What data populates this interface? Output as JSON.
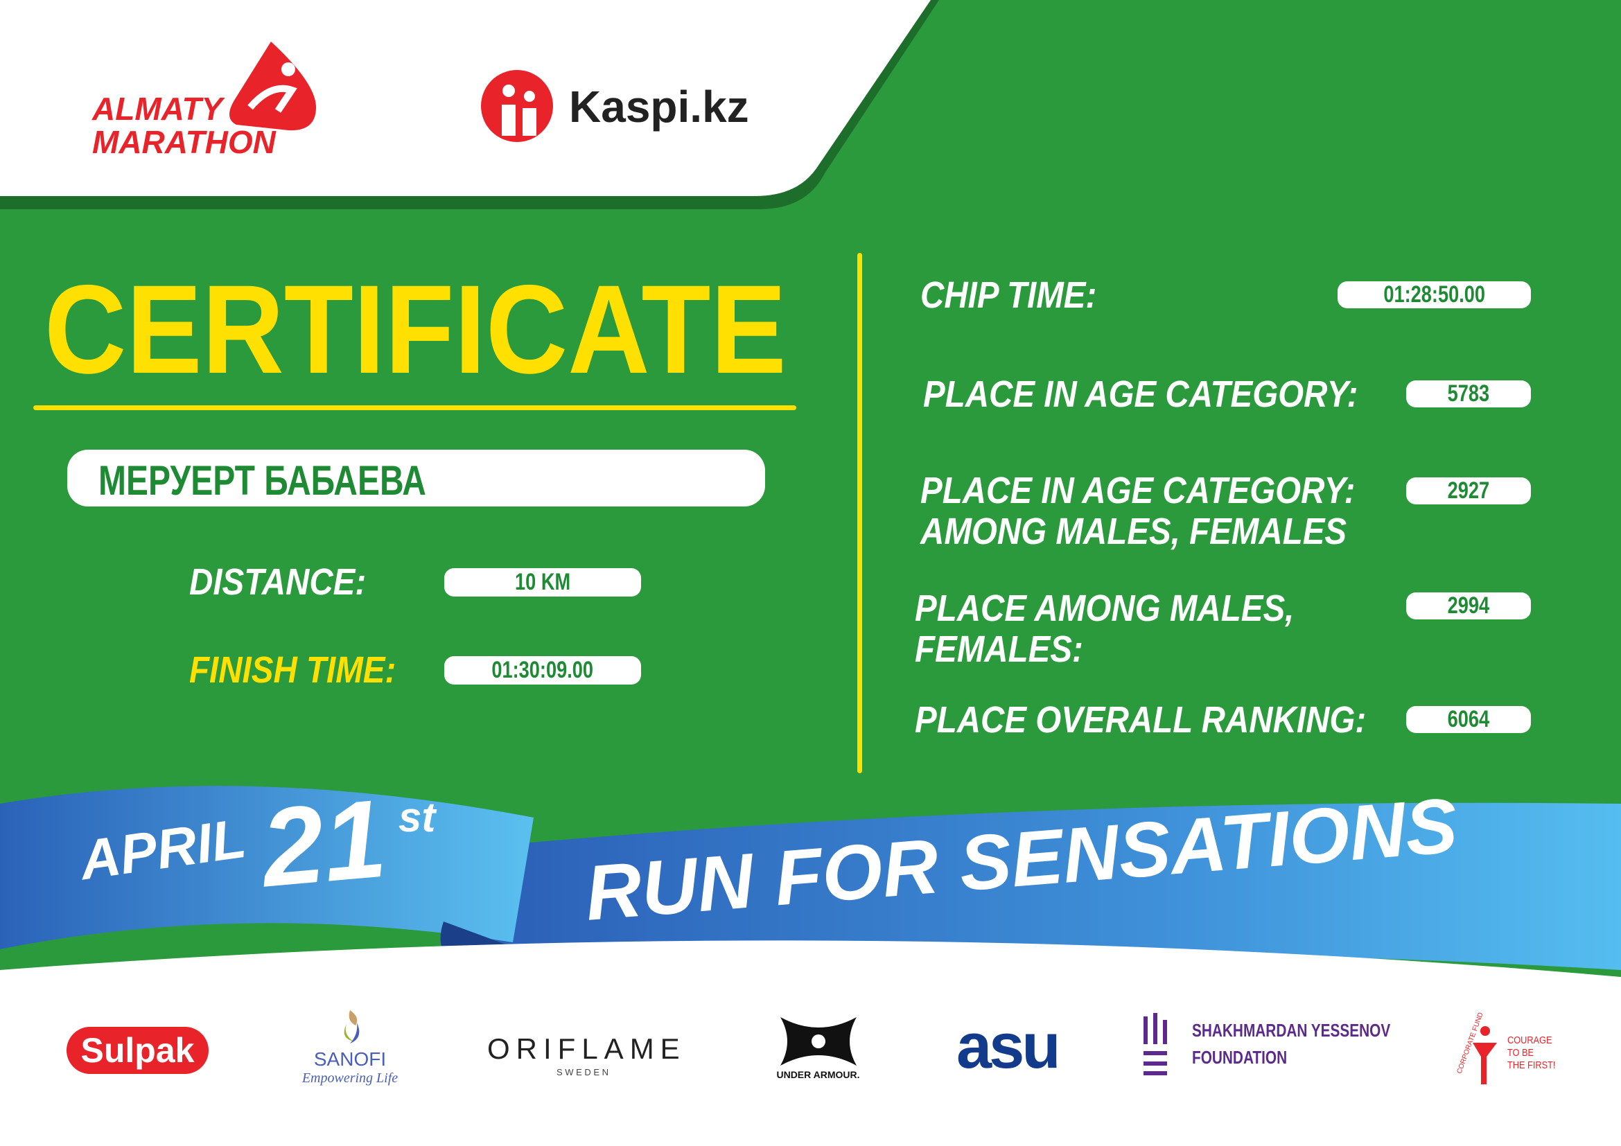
{
  "header": {
    "logo_line1": "ALMATY",
    "logo_line2": "MARATHON",
    "partner": "Kaspi.kz"
  },
  "certificate": {
    "title": "CERTIFICATE",
    "name": "МЕРУЕРТ БАБАЕВА"
  },
  "left": {
    "distance_label": "DISTANCE:",
    "distance_value": "10 KM",
    "finish_label": "FINISH TIME:",
    "finish_value": "01:30:09.00"
  },
  "right": {
    "chip_label": "CHIP TIME:",
    "chip_value": "01:28:50.00",
    "age_label": "PLACE IN AGE CATEGORY:",
    "age_value": "5783",
    "age_sex_label1": "PLACE IN AGE CATEGORY:",
    "age_sex_label2": "AMONG MALES, FEMALES",
    "age_sex_value": "2927",
    "sex_label1": "PLACE AMONG MALES,",
    "sex_label2": "FEMALES:",
    "sex_value": "2994",
    "overall_label": "PLACE OVERALL RANKING:",
    "overall_value": "6064"
  },
  "ribbon": {
    "month": "APRIL",
    "day": "21",
    "suffix": "st",
    "slogan": "RUN FOR SENSATIONS"
  },
  "sponsors": {
    "sulpak": "Sulpak",
    "sanofi": "SANOFI",
    "sanofi_tag": "Empowering Life",
    "oriflame": "ORIFLAME",
    "oriflame_sub": "S W E D E N",
    "under_armour": "UNDER ARMOUR.",
    "asu": "asu",
    "yessenov1": "SHAKHMARDAN YESSENOV",
    "yessenov2": "FOUNDATION",
    "fund_arc": "CORPORATE FUND",
    "courage1": "COURAGE",
    "courage2": "TO BE",
    "courage3": "THE FIRST!"
  },
  "colors": {
    "green": "#2a9a3c",
    "yellow": "#ffe000",
    "red": "#e8232a",
    "blue": "#3a7fd0",
    "purple": "#5b2a8c"
  }
}
